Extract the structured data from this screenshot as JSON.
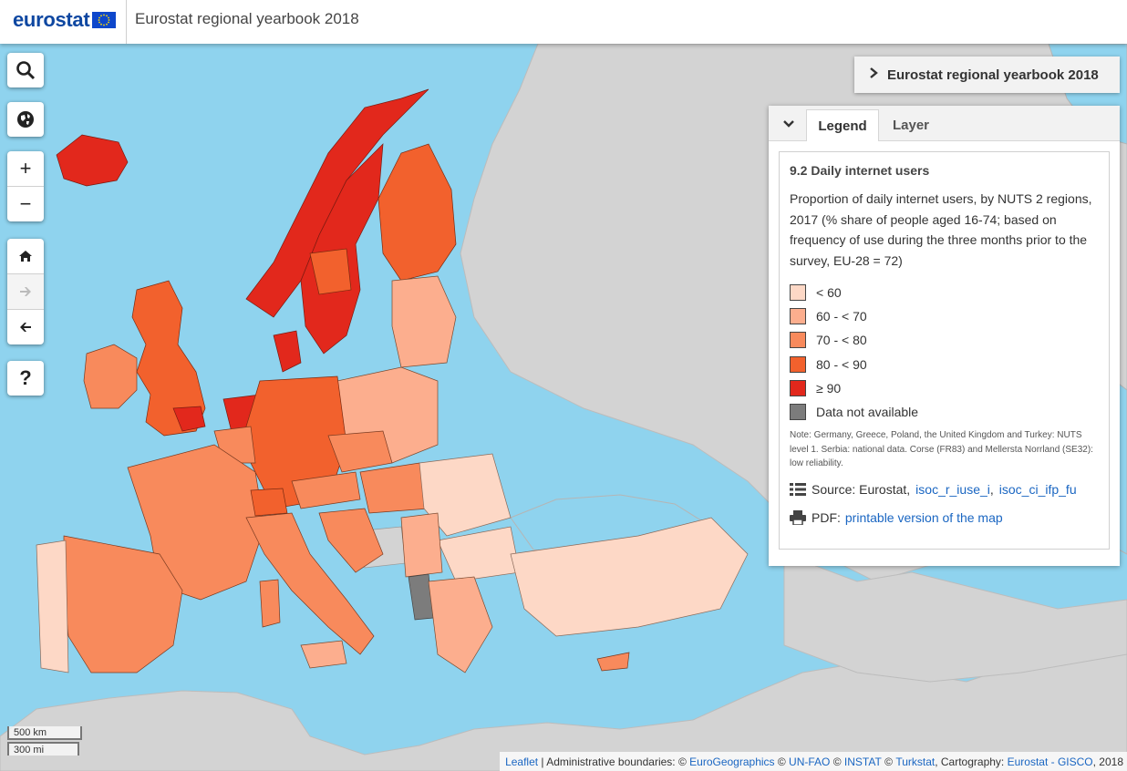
{
  "header": {
    "logo_text": "eurostat",
    "title": "Eurostat regional yearbook 2018"
  },
  "controls": {
    "search_icon": "search-icon",
    "globe_icon": "globe-icon",
    "zoom_in": "+",
    "zoom_out": "−",
    "home_icon": "home-icon",
    "forward_icon": "arrow-right-icon",
    "back_icon": "arrow-left-icon",
    "help": "?"
  },
  "yearbook_tab": {
    "label": "Eurostat regional yearbook 2018"
  },
  "panel": {
    "tabs": [
      "Legend",
      "Layer"
    ],
    "active_tab": "Legend",
    "title": "9.2 Daily internet users",
    "description": "Proportion of daily internet users, by NUTS 2 regions, 2017 (% share of people aged 16-74; based on frequency of use during the three months prior to the survey, EU-28 = 72)",
    "classes": [
      {
        "label": "< 60",
        "color": "#fdd8c6"
      },
      {
        "label": "60 - < 70",
        "color": "#fcae8e"
      },
      {
        "label": "70 - < 80",
        "color": "#f88a5c"
      },
      {
        "label": "80 - < 90",
        "color": "#f2612d"
      },
      {
        "label": "≥ 90",
        "color": "#e2281c"
      },
      {
        "label": "Data not available",
        "color": "#7c7c7c"
      }
    ],
    "note": "Note: Germany, Greece, Poland, the United Kingdom and Turkey: NUTS level 1. Serbia: national data. Corse (FR83) and Mellersta Norrland (SE32): low reliability.",
    "source_label": "Source: Eurostat,",
    "source_links": [
      "isoc_r_iuse_i",
      "isoc_ci_ifp_fu"
    ],
    "pdf_label": "PDF:",
    "pdf_link": "printable version of the map"
  },
  "scale": {
    "km": "500 km",
    "mi": "300 mi"
  },
  "attribution": {
    "leaflet": "Leaflet",
    "text1": " | Administrative boundaries: © ",
    "eurogeo": "EuroGeographics",
    "text2": " © ",
    "unfao": "UN-FAO",
    "text3": " © ",
    "instat": "INSTAT",
    "text4": " © ",
    "turkstat": "Turkstat",
    "text5": ", Cartography: ",
    "gisco": "Eurostat - GISCO",
    "text6": ", 2018"
  },
  "colors": {
    "sea": "#8fd3ee",
    "non_eu_land": "#d3d3d3",
    "accent": "#1a66c2"
  }
}
